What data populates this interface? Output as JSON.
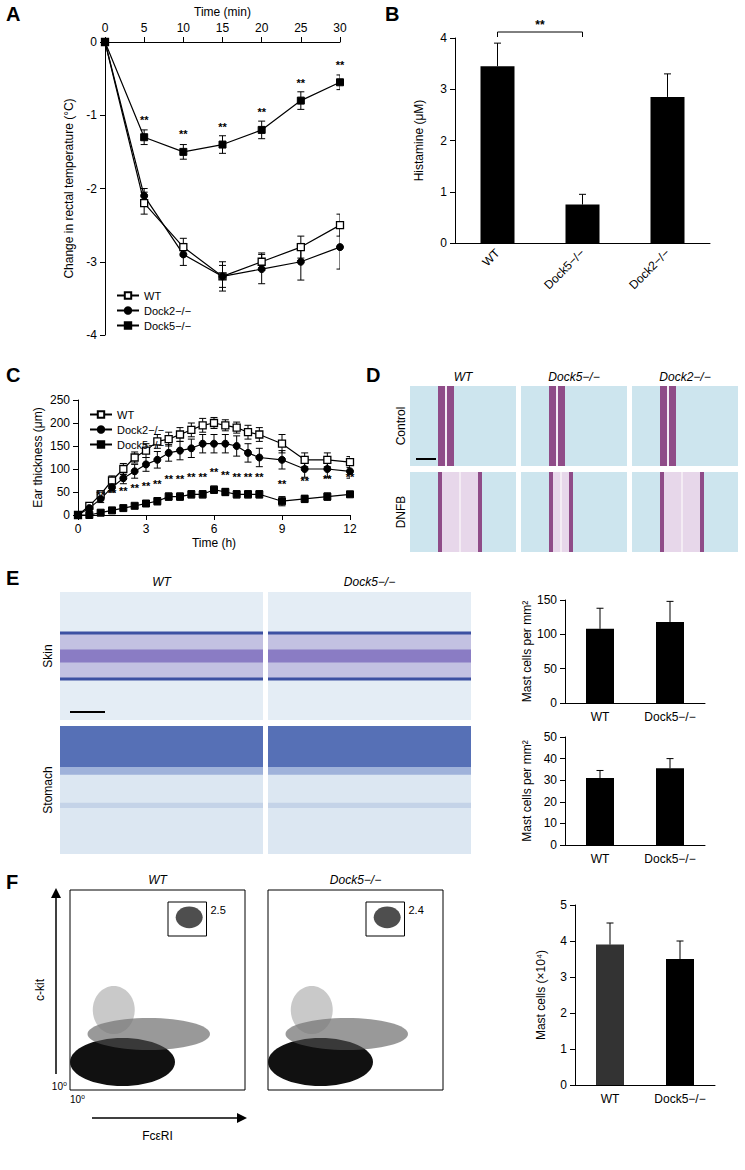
{
  "chart_data": [
    {
      "title": "A",
      "type": "line",
      "x_label": "Time (min)",
      "y_label": "Change in rectal temperature (°C)",
      "x": [
        0,
        5,
        10,
        15,
        20,
        25,
        30
      ],
      "xlim": [
        0,
        30
      ],
      "xticks": [
        0,
        5,
        10,
        15,
        20,
        25,
        30
      ],
      "ylim": [
        -4,
        0
      ],
      "yticks": [
        -4,
        -3,
        -2,
        -1,
        0
      ],
      "grid": false,
      "legend": "lower left",
      "series": [
        {
          "name": "WT",
          "color": "#000000",
          "marker": "square-open",
          "values": [
            0,
            -2.2,
            -2.8,
            -3.2,
            -3.0,
            -2.8,
            -2.5
          ],
          "errors": [
            0,
            0.15,
            0.12,
            0.15,
            0.12,
            0.15,
            0.15
          ]
        },
        {
          "name": "Dock2−/−",
          "color": "#000000",
          "marker": "circle",
          "values": [
            0,
            -2.1,
            -2.9,
            -3.2,
            -3.1,
            -3.0,
            -2.8
          ],
          "errors": [
            0,
            0.1,
            0.15,
            0.2,
            0.2,
            0.25,
            0.3
          ]
        },
        {
          "name": "Dock5−/−",
          "color": "#000000",
          "marker": "square",
          "values": [
            0,
            -1.3,
            -1.5,
            -1.4,
            -1.2,
            -0.8,
            -0.55
          ],
          "errors": [
            0,
            0.1,
            0.1,
            0.12,
            0.12,
            0.12,
            0.1
          ],
          "significance": [
            null,
            "**",
            "**",
            "**",
            "**",
            "**",
            "**"
          ]
        }
      ]
    },
    {
      "title": "B",
      "type": "bar",
      "y_label": "Histamine (μM)",
      "categories": [
        "WT",
        "Dock5−/−",
        "Dock2−/−"
      ],
      "values": [
        3.45,
        0.75,
        2.85
      ],
      "errors": [
        0.45,
        0.2,
        0.45
      ],
      "color": "#000000",
      "ylim": [
        0,
        4
      ],
      "yticks": [
        0,
        1,
        2,
        3,
        4
      ],
      "grid": false,
      "significance": [
        {
          "from": "WT",
          "to": "Dock5−/−",
          "label": "**"
        }
      ]
    },
    {
      "title": "C",
      "type": "line",
      "x_label": "Time (h)",
      "y_label": "Ear thickness (μm)",
      "x": [
        0,
        0.5,
        1,
        1.5,
        2,
        2.5,
        3,
        3.5,
        4,
        4.5,
        5,
        5.5,
        6,
        6.5,
        7,
        7.5,
        8,
        9,
        10,
        11,
        12
      ],
      "xlim": [
        0,
        12
      ],
      "xticks": [
        0,
        3,
        6,
        9,
        12
      ],
      "ylim": [
        0,
        250
      ],
      "yticks": [
        0,
        50,
        100,
        150,
        200,
        250
      ],
      "grid": false,
      "legend": "upper left",
      "series": [
        {
          "name": "WT",
          "color": "#000000",
          "marker": "square-open",
          "values": [
            0,
            20,
            45,
            75,
            100,
            125,
            140,
            160,
            165,
            175,
            185,
            195,
            200,
            195,
            190,
            180,
            175,
            155,
            120,
            120,
            115
          ],
          "errors": [
            0,
            5,
            8,
            10,
            12,
            12,
            15,
            15,
            15,
            15,
            15,
            15,
            12,
            12,
            12,
            15,
            15,
            20,
            15,
            15,
            12
          ]
        },
        {
          "name": "Dock2−/−",
          "color": "#000000",
          "marker": "circle",
          "values": [
            0,
            15,
            35,
            60,
            80,
            95,
            110,
            120,
            135,
            140,
            145,
            155,
            155,
            155,
            150,
            135,
            125,
            120,
            100,
            100,
            95
          ],
          "errors": [
            0,
            5,
            8,
            10,
            12,
            15,
            15,
            18,
            18,
            20,
            20,
            20,
            20,
            20,
            22,
            20,
            20,
            20,
            18,
            18,
            15
          ]
        },
        {
          "name": "Dock5−/−",
          "color": "#000000",
          "marker": "square",
          "values": [
            0,
            0,
            5,
            10,
            15,
            20,
            25,
            30,
            40,
            40,
            45,
            45,
            55,
            50,
            45,
            45,
            45,
            30,
            35,
            40,
            45
          ],
          "errors": [
            0,
            3,
            4,
            5,
            5,
            5,
            6,
            8,
            8,
            8,
            8,
            8,
            8,
            8,
            8,
            8,
            8,
            10,
            8,
            8,
            6
          ],
          "significance": [
            null,
            null,
            "**",
            "**",
            "**",
            "**",
            "**",
            "**",
            "**",
            "**",
            "**",
            "**",
            "**",
            "**",
            "**",
            "**",
            "**",
            "**",
            "**",
            "**",
            "**"
          ]
        }
      ]
    },
    {
      "type": "bar",
      "y_label": "Mast cells per mm²",
      "categories": [
        "WT",
        "Dock5−/−"
      ],
      "values": [
        108,
        118
      ],
      "errors": [
        30,
        30
      ],
      "color": "#000000",
      "ylim": [
        0,
        150
      ],
      "yticks": [
        0,
        50,
        100,
        150
      ],
      "grid": false
    },
    {
      "type": "bar",
      "y_label": "Mast cells per mm²",
      "categories": [
        "WT",
        "Dock5−/−"
      ],
      "values": [
        31,
        35.5
      ],
      "errors": [
        3.5,
        4.5
      ],
      "color": "#000000",
      "ylim": [
        0,
        50
      ],
      "yticks": [
        0,
        10,
        20,
        30,
        40,
        50
      ],
      "grid": false
    },
    {
      "type": "bar",
      "y_label": "Mast cells (×10⁴)",
      "categories": [
        "WT",
        "Dock5−/−"
      ],
      "values": [
        3.9,
        3.5
      ],
      "errors": [
        0.6,
        0.5
      ],
      "colors": [
        "#333333",
        "#000000"
      ],
      "ylim": [
        0,
        5
      ],
      "yticks": [
        0,
        1,
        2,
        3,
        4,
        5
      ],
      "grid": false
    }
  ],
  "image_panels": [
    {
      "title": "D",
      "columns": [
        "WT",
        "Dock5−/−",
        "Dock2−/−"
      ],
      "rows": [
        "Control",
        "DNFB"
      ]
    },
    {
      "title": "E",
      "columns": [
        "WT",
        "Dock5−/−"
      ],
      "rows": [
        "Skin",
        "Stomach"
      ]
    }
  ],
  "flow_plots": {
    "title": "F",
    "x_label": "FcεRI",
    "y_label": "c-kit",
    "origin_label": "10⁰",
    "plots": [
      {
        "name": "WT",
        "gate_percent": 2.5
      },
      {
        "name": "Dock5−/−",
        "gate_percent": 2.4
      }
    ]
  }
}
